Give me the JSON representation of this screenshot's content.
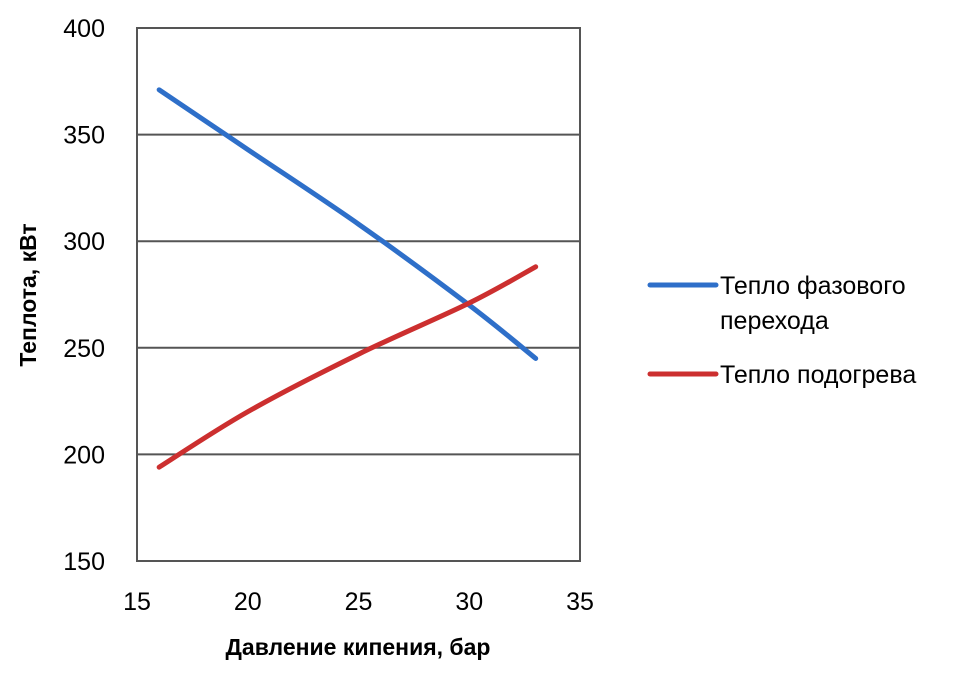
{
  "chart_data": {
    "type": "line",
    "title": "",
    "xlabel": "Давление кипения, бар",
    "ylabel": "Теплота, кВт",
    "xlim": [
      15,
      35
    ],
    "ylim": [
      150,
      400
    ],
    "xticks": [
      "15",
      "20",
      "25",
      "30",
      "35"
    ],
    "yticks": [
      "150",
      "200",
      "250",
      "300",
      "350",
      "400"
    ],
    "grid": "horizontal",
    "legend_position": "right",
    "series": [
      {
        "name_lines": [
          "Тепло фазового",
          "перехода"
        ],
        "name": "Тепло фазового перехода",
        "color": "#2e6fc9",
        "x": [
          16,
          20,
          25,
          30,
          33
        ],
        "y": [
          371,
          343,
          308,
          270,
          245
        ]
      },
      {
        "name_lines": [
          "Тепло подогрева"
        ],
        "name": "Тепло подогрева",
        "color": "#cc2f2f",
        "x": [
          16,
          20,
          25,
          30,
          33
        ],
        "y": [
          194,
          220,
          247,
          271,
          288
        ]
      }
    ]
  }
}
